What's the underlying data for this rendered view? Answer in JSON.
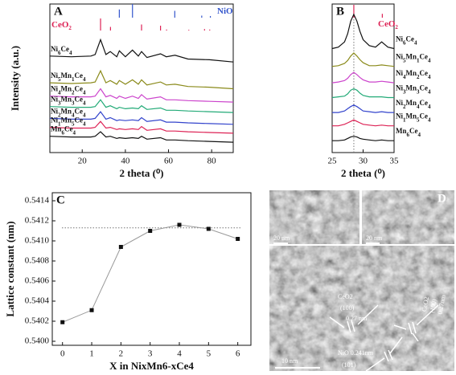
{
  "chart_data": [
    {
      "type": "line",
      "title": "A",
      "xlabel": "2 theta (⁰)",
      "ylabel": "Intensity (a.u.)",
      "xlim": [
        5,
        90
      ],
      "xticks": [
        20,
        40,
        60,
        80
      ],
      "ylim": [
        0,
        100
      ],
      "x": [
        5,
        15,
        24,
        26,
        28.5,
        31,
        33,
        36,
        37.2,
        40,
        43.3,
        46,
        47.5,
        50,
        56.3,
        59,
        63,
        69,
        79,
        90
      ],
      "series": [
        {
          "name": "Ni6Ce4",
          "color": "#111111",
          "values": [
            65,
            64.5,
            65,
            66,
            76,
            66,
            68,
            64.5,
            68.5,
            64.5,
            69,
            65,
            68,
            64,
            66.5,
            64.5,
            65.5,
            63,
            62.5,
            61
          ]
        },
        {
          "name": "Ni5Mn1Ce4",
          "color": "#8a8a1a",
          "values": [
            47,
            46.5,
            47,
            47.5,
            55,
            47,
            48.5,
            46,
            48.5,
            46,
            49,
            46,
            49,
            45.5,
            47.5,
            45.5,
            46,
            44.5,
            44,
            43
          ]
        },
        {
          "name": "Ni4Mn2Ce4",
          "color": "#cc44cc",
          "values": [
            38,
            37.5,
            37.5,
            38,
            43,
            37.5,
            38.5,
            36.5,
            38,
            36.5,
            38,
            36.5,
            39,
            36,
            37.5,
            35.5,
            35.5,
            35,
            34.5,
            34
          ]
        },
        {
          "name": "Ni3Mn3Ce4",
          "color": "#22aa77",
          "values": [
            31,
            30.5,
            30.5,
            31,
            35.5,
            30.5,
            31.5,
            29.5,
            30.5,
            29.5,
            30,
            29.5,
            31.5,
            29,
            30,
            28.5,
            28.5,
            28,
            27.5,
            27
          ]
        },
        {
          "name": "Ni2Mn4Ce4",
          "color": "#3344cc",
          "values": [
            23,
            22.5,
            22.5,
            23,
            27.5,
            22.5,
            23.5,
            21.5,
            22,
            21.5,
            22,
            21.5,
            23.5,
            21,
            22,
            20.5,
            20.5,
            20,
            19.5,
            19
          ]
        },
        {
          "name": "Ni1Mn5Ce4",
          "color": "#dd2255",
          "values": [
            17,
            16.5,
            16.5,
            17,
            21,
            16.5,
            17,
            15.5,
            16,
            15.5,
            16,
            15.5,
            17.5,
            15,
            16,
            14.5,
            14.5,
            14,
            13.5,
            13
          ]
        },
        {
          "name": "Mn6Ce4",
          "color": "#111111",
          "values": [
            11,
            10.5,
            10.5,
            11,
            14,
            10.5,
            11,
            9.5,
            10,
            9.5,
            10,
            9.5,
            11,
            9,
            10,
            8.5,
            8.5,
            8,
            7.5,
            7
          ]
        }
      ],
      "references": [
        {
          "name": "NiO",
          "color": "#3355cc",
          "positions": [
            37.2,
            43.3,
            62.9,
            75.4,
            79.4
          ],
          "heights": [
            60,
            100,
            50,
            15,
            12
          ]
        },
        {
          "name": "CeO2",
          "color": "#dd2255",
          "positions": [
            28.5,
            33.1,
            47.5,
            56.3,
            59.1,
            69.4,
            76.7,
            79.1
          ],
          "heights": [
            100,
            30,
            50,
            40,
            8,
            6,
            12,
            8
          ]
        }
      ]
    },
    {
      "type": "line",
      "title": "B",
      "xlabel": "2 theta (⁰)",
      "xlim": [
        25,
        35
      ],
      "xticks": [
        25,
        30,
        35
      ],
      "ylim": [
        0,
        100
      ],
      "reference_x": 28.5,
      "x": [
        25,
        26,
        27,
        27.5,
        28,
        28.5,
        29,
        29.5,
        30,
        31,
        32,
        33,
        34,
        35
      ],
      "series": [
        {
          "name": "Ni6Ce4",
          "color": "#111111",
          "values": [
            70,
            71,
            74.5,
            80,
            88.5,
            93,
            88.5,
            81.5,
            76,
            72,
            71,
            74.5,
            71,
            70
          ]
        },
        {
          "name": "Ni5Mn1Ce4",
          "color": "#8a8a1a",
          "values": [
            58,
            58.5,
            60,
            62,
            65,
            67,
            65,
            62.5,
            60.5,
            58.5,
            58.5,
            59,
            58.5,
            58
          ]
        },
        {
          "name": "Ni4Mn2Ce4",
          "color": "#cc44cc",
          "values": [
            47,
            47.5,
            48.5,
            50,
            52.5,
            54,
            52.5,
            50.5,
            49,
            47.5,
            47.5,
            48,
            47.5,
            47
          ]
        },
        {
          "name": "Ni3Mn3Ce4",
          "color": "#22aa77",
          "values": [
            37,
            37.5,
            38,
            39.5,
            42,
            43,
            42,
            40,
            38.5,
            37.5,
            37.5,
            37.5,
            37,
            37
          ]
        },
        {
          "name": "Ni2Mn4Ce4",
          "color": "#3344cc",
          "values": [
            27,
            27,
            28,
            29.5,
            31,
            32,
            31,
            29.5,
            28,
            27.5,
            27,
            27.5,
            27,
            27
          ]
        },
        {
          "name": "Ni1Mn5Ce4",
          "color": "#dd2255",
          "values": [
            18,
            18,
            19,
            20,
            21,
            22,
            21,
            20,
            19,
            18.5,
            18,
            18.5,
            18,
            18
          ]
        },
        {
          "name": "Mn6Ce4",
          "color": "#111111",
          "values": [
            8,
            8,
            8.5,
            9.5,
            10.5,
            11,
            10.5,
            9.5,
            9,
            8.5,
            8,
            8.5,
            8,
            8
          ]
        }
      ],
      "references": [
        {
          "name": "CeO2",
          "color": "#dd2255",
          "positions": [
            28.5,
            33.1
          ],
          "heights": [
            100,
            30
          ]
        }
      ]
    },
    {
      "type": "line",
      "title": "C",
      "xlabel": "X in NixMn6-xCe4",
      "ylabel": "Lattice constant (nm)",
      "xlim": [
        -0.35,
        6.45
      ],
      "xticks": [
        0,
        1,
        2,
        3,
        4,
        5,
        6
      ],
      "ylim": [
        0.53996,
        0.54148
      ],
      "yticks": [
        {
          "value": 0.54,
          "label": "0.5400"
        },
        0.5402,
        0.5404,
        0.5406,
        0.5408,
        {
          "value": 0.541,
          "label": "0.5410"
        },
        0.5412,
        0.5414
      ],
      "reference_y": 0.54113,
      "x": [
        0,
        1,
        2,
        3,
        4,
        5,
        6
      ],
      "series": [
        {
          "color": "#999999",
          "values": [
            0.54019,
            0.54031,
            0.54094,
            0.5411,
            0.54116,
            0.54112,
            0.54102
          ]
        }
      ]
    }
  ],
  "image_panel": {
    "label": "D",
    "scale_bars": [
      "20 nm",
      "20 nm",
      "10 nm"
    ],
    "annotations": [
      "CeO2",
      "(100)",
      "0.27 nm",
      "NiO 0.241nm",
      "(101)",
      "CeO2",
      "(100)",
      "0.27nm"
    ]
  }
}
